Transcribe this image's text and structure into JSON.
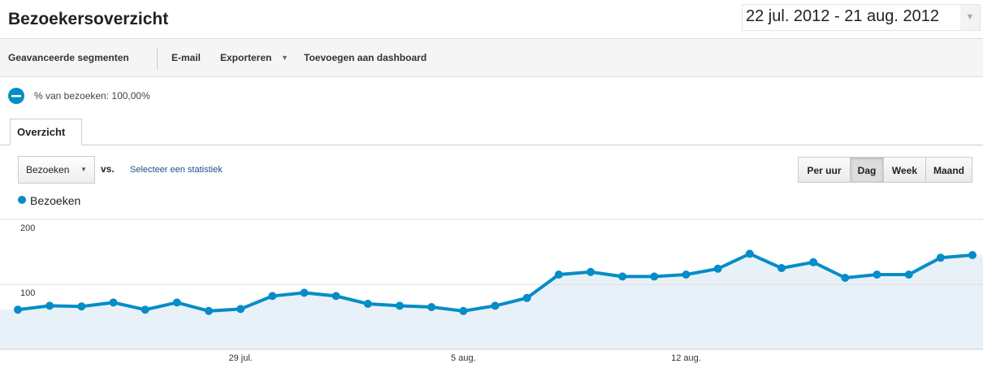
{
  "header": {
    "title": "Bezoekersoverzicht",
    "date_range": "22 jul. 2012 - 21 aug. 2012"
  },
  "toolbar": [
    "Geavanceerde segmenten",
    "E-mail",
    "Exporteren",
    "Toevoegen aan dashboard"
  ],
  "segment": "% van bezoeken: 100,00%",
  "tab": "Overzicht",
  "metric_select": "Bezoeken",
  "vs": "vs.",
  "compare_link": "Selecteer een statistiek",
  "granularity": [
    "Per uur",
    "Dag",
    "Week",
    "Maand"
  ],
  "chart_data": {
    "type": "line",
    "categories": [
      null,
      null,
      null,
      null,
      null,
      null,
      null,
      "29 jul.",
      null,
      null,
      null,
      null,
      null,
      null,
      "5 aug.",
      null,
      null,
      null,
      null,
      null,
      null,
      "12 aug.",
      null,
      null,
      null,
      null,
      null,
      null,
      null,
      null,
      null
    ],
    "series": [
      {
        "name": "Bezoeken",
        "color": "#058dc7",
        "values": [
          61,
          67,
          66,
          72,
          61,
          72,
          59,
          62,
          82,
          87,
          82,
          70,
          67,
          65,
          59,
          67,
          79,
          115,
          119,
          112,
          112,
          115,
          124,
          147,
          125,
          134,
          110,
          115,
          115,
          141,
          145
        ]
      }
    ],
    "ylim": [
      0,
      200
    ],
    "yticks": [
      100,
      200
    ],
    "grid": true
  }
}
